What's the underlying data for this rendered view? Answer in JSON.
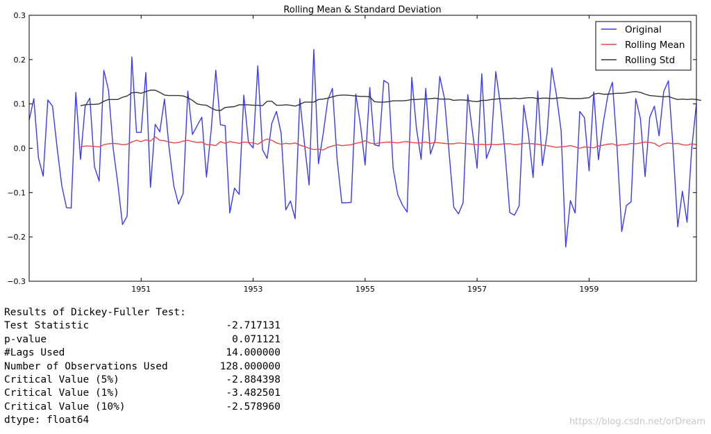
{
  "chart_data": {
    "type": "line",
    "title": "Rolling Mean & Standard Deviation",
    "xlabel": "",
    "ylabel": "",
    "xlim": [
      1949.0,
      1960.917
    ],
    "ylim": [
      -0.3,
      0.3
    ],
    "xticks": [
      1951,
      1953,
      1955,
      1957,
      1959
    ],
    "yticks": [
      -0.3,
      -0.2,
      -0.1,
      0.0,
      0.1,
      0.2,
      0.3
    ],
    "ytick_labels": [
      "−0.3",
      "−0.2",
      "−0.1",
      "0.0",
      "0.1",
      "0.2",
      "0.3"
    ],
    "grid": false,
    "legend_position": "top-right",
    "x_start": "1949-01",
    "x_step": "month",
    "series": [
      {
        "name": "Original",
        "color": "#3a3aee",
        "values": [
          0.063,
          0.112,
          -0.022,
          -0.063,
          0.109,
          0.095,
          0.0,
          -0.085,
          -0.134,
          -0.135,
          0.126,
          -0.025,
          0.095,
          0.113,
          -0.042,
          -0.074,
          0.176,
          0.131,
          0.0,
          -0.08,
          -0.172,
          -0.153,
          0.206,
          0.036,
          0.036,
          0.171,
          -0.088,
          0.054,
          0.037,
          0.111,
          0.0,
          -0.085,
          -0.126,
          -0.102,
          0.129,
          0.031,
          0.051,
          0.07,
          -0.065,
          0.04,
          0.176,
          0.053,
          0.051,
          -0.146,
          -0.09,
          -0.104,
          0.12,
          0.013,
          0.001,
          0.186,
          -0.003,
          -0.023,
          0.056,
          0.083,
          0.034,
          -0.139,
          -0.119,
          -0.159,
          0.112,
          0.01,
          -0.083,
          0.223,
          -0.035,
          0.032,
          0.109,
          0.135,
          -0.025,
          -0.123,
          -0.123,
          -0.122,
          0.122,
          0.053,
          -0.038,
          0.137,
          0.008,
          0.005,
          0.153,
          0.146,
          -0.045,
          -0.105,
          -0.128,
          -0.144,
          0.16,
          0.045,
          -0.025,
          0.135,
          -0.013,
          0.018,
          0.162,
          0.113,
          -0.01,
          -0.133,
          -0.148,
          -0.123,
          0.121,
          0.038,
          -0.045,
          0.168,
          -0.023,
          0.006,
          0.173,
          0.098,
          -0.012,
          -0.145,
          -0.151,
          -0.13,
          0.097,
          0.031,
          -0.066,
          0.129,
          -0.039,
          0.033,
          0.181,
          0.12,
          0.04,
          -0.223,
          -0.118,
          -0.146,
          0.083,
          0.069,
          -0.051,
          0.127,
          -0.026,
          0.055,
          0.118,
          0.149,
          0.0,
          -0.188,
          -0.129,
          -0.121,
          0.112,
          0.067,
          -0.064,
          0.07,
          0.095,
          0.028,
          0.128,
          0.152,
          0.0,
          -0.177,
          -0.097,
          -0.167,
          0.0,
          0.1
        ]
      },
      {
        "name": "Rolling Mean",
        "color": "#ee4444",
        "start_index": 11,
        "values": [
          0.003,
          0.005,
          0.005,
          0.004,
          0.003,
          0.008,
          0.01,
          0.011,
          0.01,
          0.008,
          0.009,
          0.014,
          0.018,
          0.015,
          0.019,
          0.016,
          0.026,
          0.018,
          0.017,
          0.014,
          0.012,
          0.013,
          0.016,
          0.018,
          0.015,
          0.013,
          0.014,
          0.008,
          0.008,
          0.006,
          0.015,
          0.011,
          0.015,
          0.013,
          0.011,
          0.014,
          0.013,
          0.012,
          0.009,
          0.016,
          0.021,
          0.018,
          0.012,
          0.009,
          0.011,
          0.01,
          0.012,
          0.007,
          0.004,
          0.0,
          -0.003,
          -0.002,
          -0.004,
          0.002,
          0.005,
          0.008,
          0.006,
          0.007,
          0.008,
          0.011,
          0.013,
          0.017,
          0.012,
          0.01,
          0.012,
          0.013,
          0.014,
          0.013,
          0.012,
          0.014,
          0.015,
          0.013,
          0.012,
          0.012,
          0.014,
          0.011,
          0.013,
          0.012,
          0.011,
          0.01,
          0.01,
          0.012,
          0.011,
          0.01,
          0.009,
          0.008,
          0.009,
          0.008,
          0.009,
          0.008,
          0.009,
          0.01,
          0.01,
          0.008,
          0.009,
          0.011,
          0.011,
          0.01,
          0.009,
          0.007,
          0.006,
          0.004,
          0.002,
          0.003,
          0.004,
          0.006,
          0.003,
          0.0,
          0.003,
          0.002,
          0.001,
          0.005,
          0.007,
          0.009,
          0.01,
          0.006,
          0.008,
          0.008,
          0.011,
          0.01,
          0.012,
          0.014,
          0.013,
          0.011,
          0.004,
          0.01,
          0.012,
          0.01,
          0.011,
          0.008,
          0.007,
          0.01,
          0.008
        ]
      },
      {
        "name": "Rolling Std",
        "color": "#333333",
        "start_index": 11,
        "values": [
          0.096,
          0.098,
          0.099,
          0.099,
          0.1,
          0.106,
          0.11,
          0.11,
          0.11,
          0.115,
          0.118,
          0.125,
          0.126,
          0.124,
          0.128,
          0.131,
          0.131,
          0.126,
          0.12,
          0.119,
          0.119,
          0.119,
          0.118,
          0.114,
          0.108,
          0.1,
          0.098,
          0.097,
          0.091,
          0.086,
          0.085,
          0.092,
          0.093,
          0.094,
          0.098,
          0.098,
          0.098,
          0.097,
          0.097,
          0.096,
          0.106,
          0.106,
          0.097,
          0.097,
          0.098,
          0.097,
          0.095,
          0.099,
          0.104,
          0.104,
          0.104,
          0.11,
          0.111,
          0.113,
          0.116,
          0.119,
          0.12,
          0.12,
          0.119,
          0.118,
          0.117,
          0.117,
          0.116,
          0.105,
          0.104,
          0.104,
          0.105,
          0.107,
          0.107,
          0.107,
          0.108,
          0.11,
          0.11,
          0.111,
          0.111,
          0.112,
          0.113,
          0.111,
          0.111,
          0.111,
          0.108,
          0.109,
          0.109,
          0.108,
          0.106,
          0.105,
          0.108,
          0.108,
          0.11,
          0.111,
          0.112,
          0.112,
          0.112,
          0.113,
          0.112,
          0.113,
          0.114,
          0.114,
          0.112,
          0.113,
          0.113,
          0.112,
          0.113,
          0.114,
          0.113,
          0.112,
          0.112,
          0.112,
          0.113,
          0.114,
          0.122,
          0.124,
          0.122,
          0.122,
          0.123,
          0.124,
          0.124,
          0.125,
          0.127,
          0.128,
          0.126,
          0.122,
          0.119,
          0.118,
          0.117,
          0.116,
          0.117,
          0.113,
          0.11,
          0.111,
          0.11,
          0.111,
          0.11,
          0.108
        ]
      }
    ]
  },
  "results": {
    "title": "Results of Dickey-Fuller Test:",
    "rows": [
      {
        "label": "Test Statistic",
        "value": "-2.717131"
      },
      {
        "label": "p-value",
        "value": "0.071121"
      },
      {
        "label": "#Lags Used",
        "value": "14.000000"
      },
      {
        "label": "Number of Observations Used",
        "value": "128.000000"
      },
      {
        "label": "Critical Value (5%)",
        "value": "-2.884398"
      },
      {
        "label": "Critical Value (1%)",
        "value": "-3.482501"
      },
      {
        "label": "Critical Value (10%)",
        "value": "-2.578960"
      }
    ],
    "dtype": "dtype: float64"
  },
  "watermark": "https://blog.csdn.net/orDream"
}
